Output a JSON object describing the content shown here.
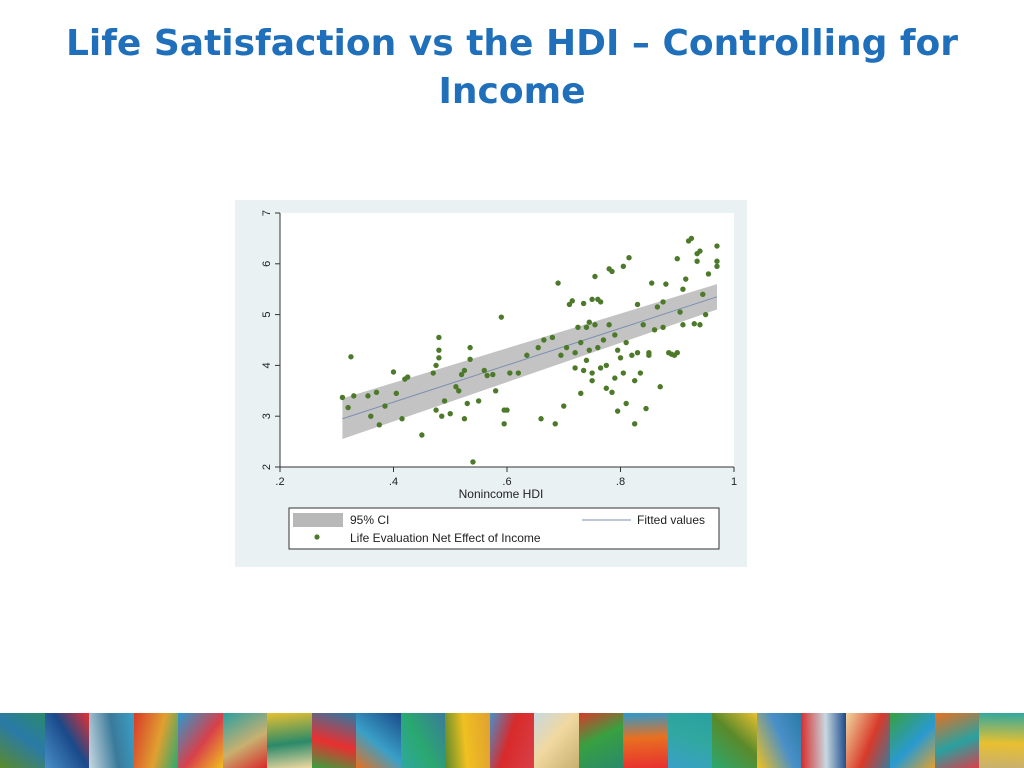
{
  "slide": {
    "title": "Life Satisfaction vs the HDI – Controlling for Income"
  },
  "chart_data": {
    "type": "scatter",
    "title": "",
    "xlabel": "Nonincome HDI",
    "ylabel": "",
    "xlim": [
      0.2,
      1.0
    ],
    "ylim": [
      2,
      7
    ],
    "xticks": [
      ".2",
      ".4",
      ".6",
      ".8",
      "1"
    ],
    "yticks": [
      "2",
      "3",
      "4",
      "5",
      "6",
      "7"
    ],
    "grid": false,
    "legend_position": "bottom",
    "legend": {
      "ci_label": "95% CI",
      "fitted_label": "Fitted values",
      "points_label": "Life Evaluation Net Effect of Income"
    },
    "colors": {
      "points": "#4d7a2a",
      "ci_band": "#b8b8b8",
      "fitted_line": "#7b8fb0",
      "plot_background": "#ffffff",
      "panel_background": "#eaf1f3"
    },
    "fitted_line": {
      "x": [
        0.31,
        0.97
      ],
      "y": [
        2.95,
        5.35
      ]
    },
    "ci_band": {
      "x": [
        0.31,
        0.97
      ],
      "lower": [
        2.55,
        5.1
      ],
      "upper": [
        3.35,
        5.6
      ]
    },
    "series": [
      {
        "name": "Life Evaluation Net Effect of Income",
        "points": [
          [
            0.31,
            3.37
          ],
          [
            0.32,
            3.17
          ],
          [
            0.325,
            4.17
          ],
          [
            0.33,
            3.4
          ],
          [
            0.355,
            3.4
          ],
          [
            0.36,
            3.0
          ],
          [
            0.37,
            3.47
          ],
          [
            0.375,
            2.83
          ],
          [
            0.385,
            3.2
          ],
          [
            0.4,
            3.87
          ],
          [
            0.405,
            3.45
          ],
          [
            0.415,
            2.95
          ],
          [
            0.42,
            3.73
          ],
          [
            0.425,
            3.77
          ],
          [
            0.45,
            2.63
          ],
          [
            0.47,
            3.85
          ],
          [
            0.475,
            4.0
          ],
          [
            0.475,
            3.12
          ],
          [
            0.48,
            4.55
          ],
          [
            0.48,
            4.3
          ],
          [
            0.48,
            4.15
          ],
          [
            0.485,
            3.0
          ],
          [
            0.49,
            3.3
          ],
          [
            0.5,
            3.05
          ],
          [
            0.51,
            3.58
          ],
          [
            0.515,
            3.5
          ],
          [
            0.52,
            3.82
          ],
          [
            0.525,
            3.9
          ],
          [
            0.525,
            2.95
          ],
          [
            0.53,
            3.25
          ],
          [
            0.535,
            4.35
          ],
          [
            0.535,
            4.12
          ],
          [
            0.54,
            2.1
          ],
          [
            0.55,
            3.3
          ],
          [
            0.56,
            3.9
          ],
          [
            0.565,
            3.8
          ],
          [
            0.575,
            3.82
          ],
          [
            0.58,
            3.5
          ],
          [
            0.59,
            4.95
          ],
          [
            0.595,
            3.12
          ],
          [
            0.595,
            2.85
          ],
          [
            0.6,
            3.12
          ],
          [
            0.605,
            3.85
          ],
          [
            0.62,
            3.85
          ],
          [
            0.635,
            4.2
          ],
          [
            0.655,
            4.35
          ],
          [
            0.66,
            2.95
          ],
          [
            0.665,
            4.5
          ],
          [
            0.68,
            4.55
          ],
          [
            0.685,
            2.85
          ],
          [
            0.69,
            5.62
          ],
          [
            0.695,
            4.2
          ],
          [
            0.7,
            3.2
          ],
          [
            0.705,
            4.35
          ],
          [
            0.71,
            5.2
          ],
          [
            0.715,
            5.27
          ],
          [
            0.72,
            4.25
          ],
          [
            0.72,
            3.95
          ],
          [
            0.725,
            4.75
          ],
          [
            0.73,
            4.45
          ],
          [
            0.73,
            3.45
          ],
          [
            0.735,
            5.22
          ],
          [
            0.735,
            3.9
          ],
          [
            0.74,
            4.1
          ],
          [
            0.74,
            4.75
          ],
          [
            0.745,
            4.85
          ],
          [
            0.745,
            4.3
          ],
          [
            0.75,
            5.3
          ],
          [
            0.75,
            3.85
          ],
          [
            0.75,
            3.7
          ],
          [
            0.755,
            4.8
          ],
          [
            0.755,
            5.75
          ],
          [
            0.76,
            4.35
          ],
          [
            0.76,
            5.3
          ],
          [
            0.765,
            3.95
          ],
          [
            0.765,
            5.25
          ],
          [
            0.77,
            4.5
          ],
          [
            0.775,
            3.55
          ],
          [
            0.775,
            4.0
          ],
          [
            0.78,
            4.8
          ],
          [
            0.78,
            5.9
          ],
          [
            0.785,
            3.47
          ],
          [
            0.785,
            5.85
          ],
          [
            0.79,
            4.6
          ],
          [
            0.79,
            3.75
          ],
          [
            0.795,
            4.3
          ],
          [
            0.795,
            3.1
          ],
          [
            0.8,
            4.15
          ],
          [
            0.805,
            3.85
          ],
          [
            0.805,
            5.95
          ],
          [
            0.81,
            4.45
          ],
          [
            0.81,
            3.25
          ],
          [
            0.815,
            6.12
          ],
          [
            0.82,
            4.2
          ],
          [
            0.825,
            3.7
          ],
          [
            0.825,
            2.85
          ],
          [
            0.83,
            4.25
          ],
          [
            0.83,
            5.2
          ],
          [
            0.835,
            3.85
          ],
          [
            0.84,
            4.8
          ],
          [
            0.845,
            3.15
          ],
          [
            0.85,
            4.25
          ],
          [
            0.85,
            4.2
          ],
          [
            0.855,
            5.62
          ],
          [
            0.86,
            4.7
          ],
          [
            0.865,
            5.15
          ],
          [
            0.87,
            3.58
          ],
          [
            0.875,
            5.25
          ],
          [
            0.875,
            4.75
          ],
          [
            0.88,
            5.6
          ],
          [
            0.885,
            4.25
          ],
          [
            0.89,
            4.22
          ],
          [
            0.895,
            4.2
          ],
          [
            0.9,
            4.25
          ],
          [
            0.9,
            6.1
          ],
          [
            0.905,
            5.05
          ],
          [
            0.91,
            4.8
          ],
          [
            0.91,
            5.5
          ],
          [
            0.915,
            5.7
          ],
          [
            0.92,
            6.45
          ],
          [
            0.925,
            6.5
          ],
          [
            0.93,
            4.82
          ],
          [
            0.935,
            6.2
          ],
          [
            0.935,
            6.05
          ],
          [
            0.94,
            6.25
          ],
          [
            0.94,
            4.8
          ],
          [
            0.945,
            5.4
          ],
          [
            0.95,
            5.0
          ],
          [
            0.955,
            5.8
          ],
          [
            0.97,
            6.35
          ],
          [
            0.97,
            6.05
          ],
          [
            0.97,
            5.95
          ]
        ]
      }
    ]
  },
  "footer": {
    "tile_colors": [
      "#5a8a2a",
      "#4a90c8",
      "#c8d8e0",
      "#d83a2a",
      "#2a9ad0",
      "#2aa0a0",
      "#e8c030",
      "#2a7aa8",
      "#1a4a8a",
      "#3a7a9a",
      "#e0a030",
      "#d8404a",
      "#c8b070",
      "#2a8a6a",
      "#e83030",
      "#3aa0c8",
      "#2aa870",
      "#f0c020",
      "#d82a2a",
      "#f0d8a0",
      "#38a040",
      "#e87020",
      "#30a8a0"
    ]
  }
}
